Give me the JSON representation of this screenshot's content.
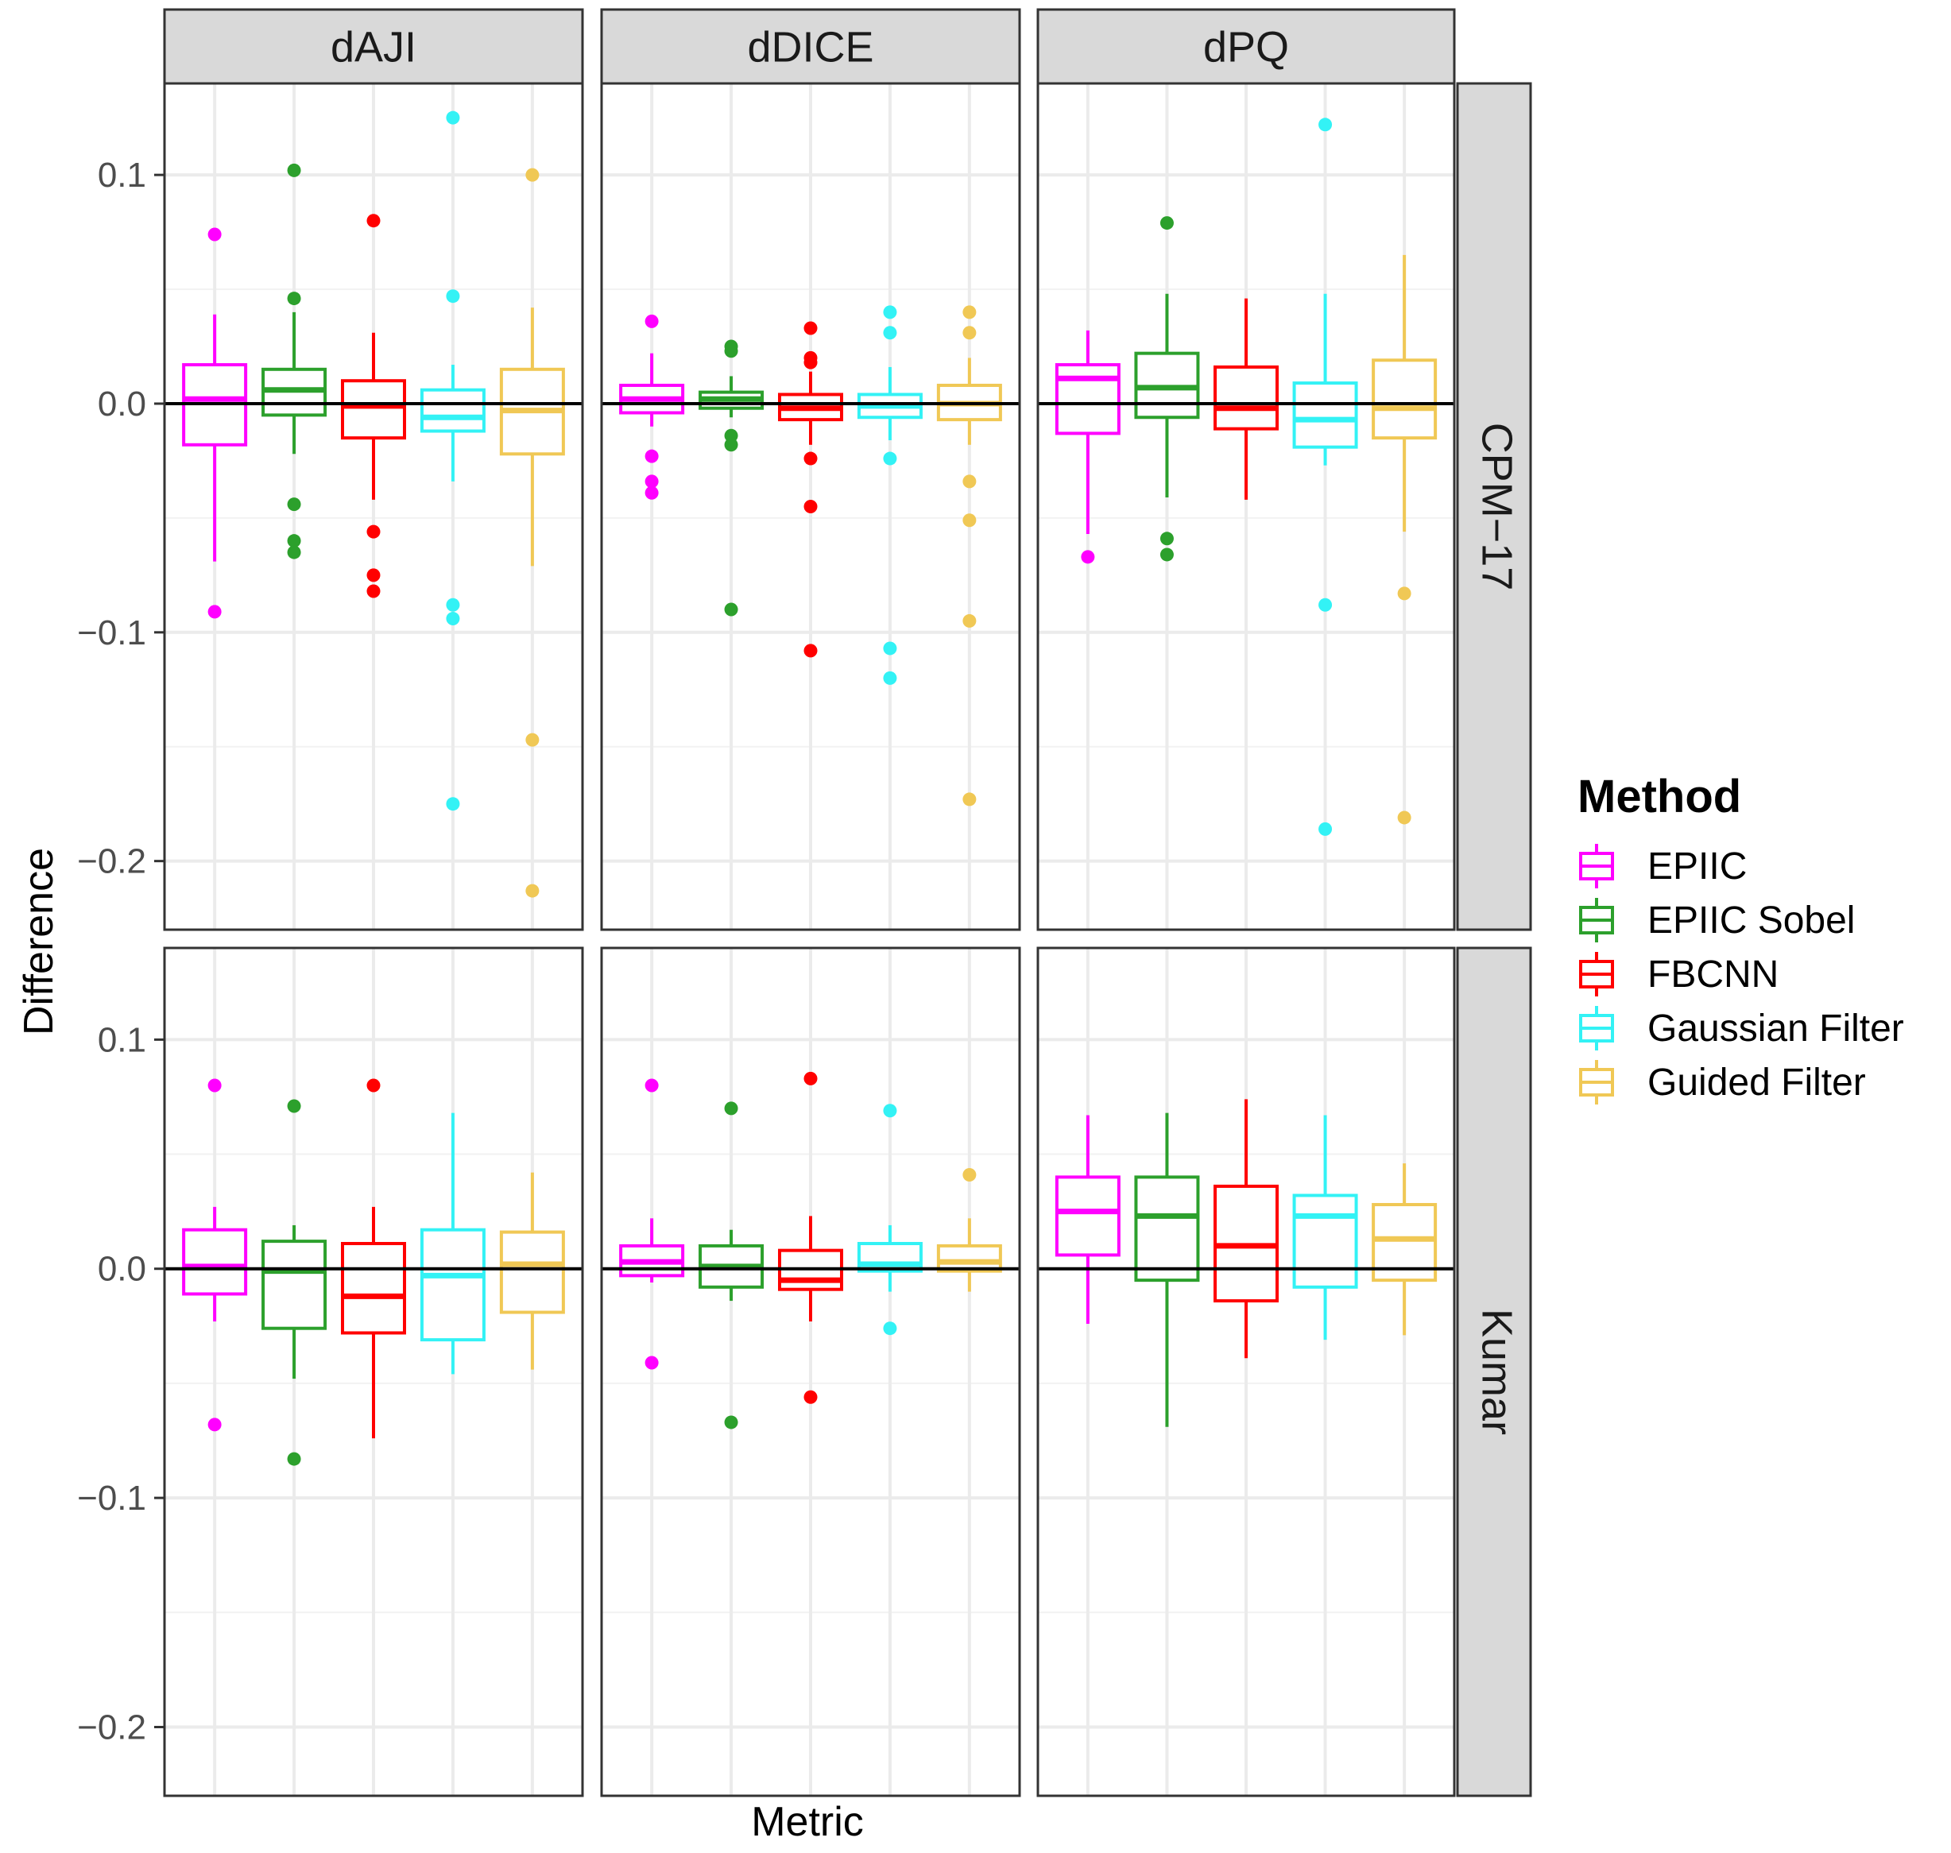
{
  "chart_data": {
    "type": "boxplot",
    "x_label": "Metric",
    "y_label": "Difference",
    "y_range": [
      -0.23,
      0.14
    ],
    "y_ticks": [
      -0.2,
      -0.1,
      0.0,
      0.1
    ],
    "y_tick_labels": [
      "−0.2",
      "−0.1",
      "0.0",
      "0.1"
    ],
    "reference_line": 0.0,
    "columns": [
      "dAJI",
      "dDICE",
      "dPQ"
    ],
    "rows": [
      "CPM−17",
      "Kumar"
    ],
    "legend": {
      "title": "Method",
      "position": "right",
      "entries": [
        {
          "name": "EPIIC",
          "color": "#ff00ff"
        },
        {
          "name": "EPIIC Sobel",
          "color": "#2ca02c"
        },
        {
          "name": "FBCNN",
          "color": "#ff0000"
        },
        {
          "name": "Gaussian Filter",
          "color": "#33f2f5"
        },
        {
          "name": "Guided Filter",
          "color": "#f0c855"
        }
      ]
    },
    "panels": [
      {
        "row": "CPM−17",
        "column": "dAJI",
        "boxes": [
          {
            "method": "EPIIC",
            "whisker_low": -0.069,
            "q1": -0.018,
            "median": 0.002,
            "q3": 0.017,
            "whisker_high": 0.039,
            "outliers": [
              0.074,
              -0.091
            ]
          },
          {
            "method": "EPIIC Sobel",
            "whisker_low": -0.022,
            "q1": -0.005,
            "median": 0.006,
            "q3": 0.015,
            "whisker_high": 0.04,
            "outliers": [
              0.102,
              0.046,
              -0.044,
              -0.06,
              -0.065
            ]
          },
          {
            "method": "FBCNN",
            "whisker_low": -0.042,
            "q1": -0.015,
            "median": -0.001,
            "q3": 0.01,
            "whisker_high": 0.031,
            "outliers": [
              0.08,
              -0.056,
              -0.075,
              -0.082
            ]
          },
          {
            "method": "Gaussian Filter",
            "whisker_low": -0.034,
            "q1": -0.012,
            "median": -0.006,
            "q3": 0.006,
            "whisker_high": 0.017,
            "outliers": [
              0.125,
              0.047,
              -0.088,
              -0.094,
              -0.175
            ]
          },
          {
            "method": "Guided Filter",
            "whisker_low": -0.071,
            "q1": -0.022,
            "median": -0.003,
            "q3": 0.015,
            "whisker_high": 0.042,
            "outliers": [
              0.1,
              -0.147,
              -0.213
            ]
          }
        ]
      },
      {
        "row": "CPM−17",
        "column": "dDICE",
        "boxes": [
          {
            "method": "EPIIC",
            "whisker_low": -0.01,
            "q1": -0.004,
            "median": 0.002,
            "q3": 0.008,
            "whisker_high": 0.022,
            "outliers": [
              0.036,
              -0.023,
              -0.034,
              -0.039
            ]
          },
          {
            "method": "EPIIC Sobel",
            "whisker_low": -0.006,
            "q1": -0.002,
            "median": 0.002,
            "q3": 0.005,
            "whisker_high": 0.012,
            "outliers": [
              0.025,
              0.023,
              -0.014,
              -0.018,
              -0.09
            ]
          },
          {
            "method": "FBCNN",
            "whisker_low": -0.018,
            "q1": -0.007,
            "median": -0.002,
            "q3": 0.004,
            "whisker_high": 0.014,
            "outliers": [
              0.033,
              0.02,
              0.018,
              -0.024,
              -0.045,
              -0.108
            ]
          },
          {
            "method": "Gaussian Filter",
            "whisker_low": -0.016,
            "q1": -0.006,
            "median": -0.001,
            "q3": 0.004,
            "whisker_high": 0.016,
            "outliers": [
              0.04,
              0.031,
              -0.024,
              -0.107,
              -0.12
            ]
          },
          {
            "method": "Guided Filter",
            "whisker_low": -0.018,
            "q1": -0.007,
            "median": 0.0,
            "q3": 0.008,
            "whisker_high": 0.02,
            "outliers": [
              0.04,
              0.031,
              -0.034,
              -0.051,
              -0.095,
              -0.173
            ]
          }
        ]
      },
      {
        "row": "CPM−17",
        "column": "dPQ",
        "boxes": [
          {
            "method": "EPIIC",
            "whisker_low": -0.057,
            "q1": -0.013,
            "median": 0.011,
            "q3": 0.017,
            "whisker_high": 0.032,
            "outliers": [
              -0.067
            ]
          },
          {
            "method": "EPIIC Sobel",
            "whisker_low": -0.041,
            "q1": -0.006,
            "median": 0.007,
            "q3": 0.022,
            "whisker_high": 0.048,
            "outliers": [
              0.079,
              -0.059,
              -0.066
            ]
          },
          {
            "method": "FBCNN",
            "whisker_low": -0.042,
            "q1": -0.011,
            "median": -0.002,
            "q3": 0.016,
            "whisker_high": 0.046,
            "outliers": []
          },
          {
            "method": "Gaussian Filter",
            "whisker_low": -0.027,
            "q1": -0.019,
            "median": -0.007,
            "q3": 0.009,
            "whisker_high": 0.048,
            "outliers": [
              0.122,
              -0.088,
              -0.186
            ]
          },
          {
            "method": "Guided Filter",
            "whisker_low": -0.056,
            "q1": -0.015,
            "median": -0.002,
            "q3": 0.019,
            "whisker_high": 0.065,
            "outliers": [
              -0.083,
              -0.181
            ]
          }
        ]
      },
      {
        "row": "Kumar",
        "column": "dAJI",
        "boxes": [
          {
            "method": "EPIIC",
            "whisker_low": -0.023,
            "q1": -0.011,
            "median": 0.001,
            "q3": 0.017,
            "whisker_high": 0.027,
            "outliers": [
              0.08,
              -0.068
            ]
          },
          {
            "method": "EPIIC Sobel",
            "whisker_low": -0.048,
            "q1": -0.026,
            "median": -0.001,
            "q3": 0.012,
            "whisker_high": 0.019,
            "outliers": [
              0.071,
              -0.083
            ]
          },
          {
            "method": "FBCNN",
            "whisker_low": -0.074,
            "q1": -0.028,
            "median": -0.012,
            "q3": 0.011,
            "whisker_high": 0.027,
            "outliers": [
              0.08
            ]
          },
          {
            "method": "Gaussian Filter",
            "whisker_low": -0.046,
            "q1": -0.031,
            "median": -0.003,
            "q3": 0.017,
            "whisker_high": 0.068,
            "outliers": []
          },
          {
            "method": "Guided Filter",
            "whisker_low": -0.044,
            "q1": -0.019,
            "median": 0.002,
            "q3": 0.016,
            "whisker_high": 0.042,
            "outliers": []
          }
        ]
      },
      {
        "row": "Kumar",
        "column": "dDICE",
        "boxes": [
          {
            "method": "EPIIC",
            "whisker_low": -0.006,
            "q1": -0.003,
            "median": 0.003,
            "q3": 0.01,
            "whisker_high": 0.022,
            "outliers": [
              0.08,
              -0.041
            ]
          },
          {
            "method": "EPIIC Sobel",
            "whisker_low": -0.014,
            "q1": -0.008,
            "median": 0.001,
            "q3": 0.01,
            "whisker_high": 0.017,
            "outliers": [
              0.07,
              -0.067
            ]
          },
          {
            "method": "FBCNN",
            "whisker_low": -0.023,
            "q1": -0.009,
            "median": -0.005,
            "q3": 0.008,
            "whisker_high": 0.023,
            "outliers": [
              0.083,
              -0.056
            ]
          },
          {
            "method": "Gaussian Filter",
            "whisker_low": -0.01,
            "q1": -0.001,
            "median": 0.002,
            "q3": 0.011,
            "whisker_high": 0.019,
            "outliers": [
              0.069,
              -0.026
            ]
          },
          {
            "method": "Guided Filter",
            "whisker_low": -0.01,
            "q1": -0.001,
            "median": 0.003,
            "q3": 0.01,
            "whisker_high": 0.022,
            "outliers": [
              0.041
            ]
          }
        ]
      },
      {
        "row": "Kumar",
        "column": "dPQ",
        "boxes": [
          {
            "method": "EPIIC",
            "whisker_low": -0.024,
            "q1": 0.006,
            "median": 0.025,
            "q3": 0.04,
            "whisker_high": 0.067,
            "outliers": []
          },
          {
            "method": "EPIIC Sobel",
            "whisker_low": -0.069,
            "q1": -0.005,
            "median": 0.023,
            "q3": 0.04,
            "whisker_high": 0.068,
            "outliers": []
          },
          {
            "method": "FBCNN",
            "whisker_low": -0.039,
            "q1": -0.014,
            "median": 0.01,
            "q3": 0.036,
            "whisker_high": 0.074,
            "outliers": []
          },
          {
            "method": "Gaussian Filter",
            "whisker_low": -0.031,
            "q1": -0.008,
            "median": 0.023,
            "q3": 0.032,
            "whisker_high": 0.067,
            "outliers": []
          },
          {
            "method": "Guided Filter",
            "whisker_low": -0.029,
            "q1": -0.005,
            "median": 0.013,
            "q3": 0.028,
            "whisker_high": 0.046,
            "outliers": []
          }
        ]
      }
    ]
  }
}
